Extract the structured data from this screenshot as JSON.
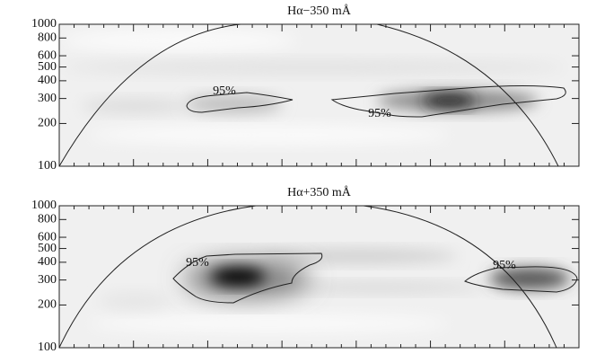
{
  "chart_data": [
    {
      "type": "wavelet",
      "title": "Hα−350 mÅ",
      "ylim": [
        100,
        1000
      ],
      "yticks": [
        100,
        200,
        300,
        400,
        500,
        600,
        800,
        1000
      ],
      "log_y": true,
      "annotations": [
        "95%",
        "95%"
      ]
    },
    {
      "type": "wavelet",
      "title": "Hα+350 mÅ",
      "ylim": [
        100,
        1000
      ],
      "yticks": [
        100,
        200,
        300,
        400,
        500,
        600,
        800,
        1000
      ],
      "log_y": true,
      "annotations": [
        "95%",
        "95%"
      ]
    }
  ]
}
